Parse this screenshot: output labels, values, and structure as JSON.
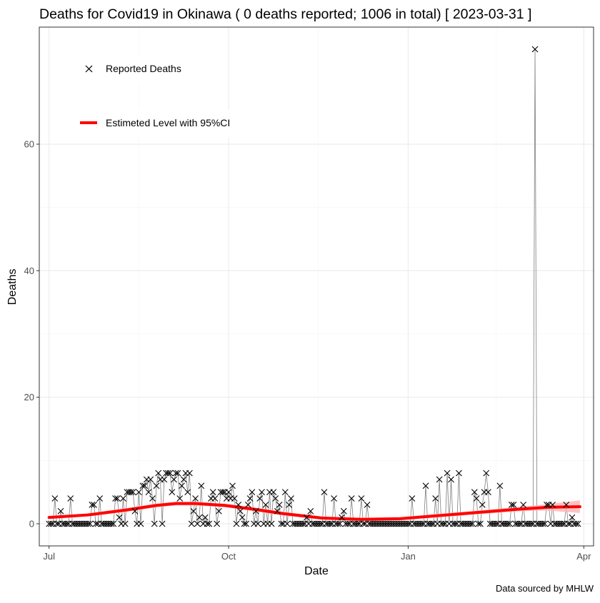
{
  "chart_data": {
    "type": "line",
    "title": "Deaths for Covid19 in Okinawa ( 0 deaths reported; 1006 in total)  [ 2023-03-31 ]",
    "xlabel": "Date",
    "ylabel": "Deaths",
    "caption": "Data sourced by MHLW",
    "x_range_days": [
      -5,
      279
    ],
    "ylim": [
      -3.5,
      78.5
    ],
    "y_ticks": [
      0,
      20,
      40,
      60
    ],
    "x_ticks": [
      {
        "label": "Jul",
        "day": 0
      },
      {
        "label": "Oct",
        "day": 92
      },
      {
        "label": "Jan",
        "day": 184
      },
      {
        "label": "Apr",
        "day": 274
      }
    ],
    "legend": {
      "position": "top-left",
      "entries": [
        {
          "label": "Reported Deaths",
          "kind": "x-marker",
          "color": "#000000"
        },
        {
          "label": "Estimeted Level with 95%CI",
          "kind": "line",
          "color": "#ff0000"
        }
      ]
    },
    "colors": {
      "points": "#000000",
      "connector": "#7f7f7f",
      "trend": "#ff0000",
      "ci": "#ffb3b3"
    },
    "series": [
      {
        "name": "Reported Deaths",
        "start_date": "2022-07-01",
        "values": [
          0,
          0,
          0,
          4,
          0,
          0,
          2,
          0,
          0,
          0,
          0,
          4,
          0,
          0,
          0,
          0,
          0,
          0,
          0,
          0,
          0,
          0,
          3,
          3,
          0,
          0,
          4,
          0,
          0,
          0,
          0,
          0,
          0,
          0,
          4,
          4,
          1,
          0,
          4,
          0,
          5,
          5,
          5,
          5,
          2,
          0,
          5,
          0,
          6,
          6,
          7,
          5,
          7,
          4,
          0,
          6,
          8,
          7,
          0,
          7,
          8,
          8,
          8,
          5,
          7,
          8,
          8,
          4,
          6,
          7,
          8,
          5,
          8,
          0,
          2,
          4,
          0,
          1,
          6,
          0,
          1,
          0,
          0,
          4,
          5,
          4,
          0,
          2,
          5,
          5,
          5,
          4,
          5,
          4,
          6,
          4,
          0,
          3,
          2,
          1,
          0,
          0,
          3,
          4,
          5,
          0,
          2,
          0,
          4,
          5,
          0,
          3,
          0,
          5,
          0,
          5,
          4,
          2,
          3,
          0,
          0,
          5,
          0,
          3,
          4,
          0,
          0,
          0,
          0,
          0,
          0,
          0,
          1,
          0,
          2,
          0,
          0,
          0,
          0,
          0,
          0,
          5,
          0,
          0,
          0,
          0,
          4,
          0,
          0,
          0,
          1,
          2,
          0,
          0,
          0,
          4,
          0,
          0,
          0,
          0,
          4,
          0,
          0,
          3,
          0,
          0,
          0,
          0,
          0,
          0,
          0,
          0,
          0,
          0,
          0,
          0,
          0,
          0,
          0,
          0,
          0,
          0,
          0,
          0,
          0,
          0,
          4,
          0,
          0,
          0,
          0,
          0,
          0,
          6,
          0,
          0,
          0,
          0,
          4,
          0,
          7,
          0,
          0,
          0,
          8,
          0,
          7,
          0,
          0,
          0,
          8,
          0,
          0,
          0,
          0,
          0,
          0,
          0,
          5,
          4,
          0,
          0,
          3,
          5,
          8,
          5,
          0,
          0,
          0,
          0,
          0,
          6,
          0,
          0,
          0,
          0,
          0,
          3,
          3,
          0,
          0,
          0,
          0,
          3,
          0,
          0,
          0,
          0,
          0,
          75,
          0,
          0,
          0,
          0,
          0,
          3,
          3,
          0,
          3,
          0,
          0,
          0,
          0,
          0,
          0,
          3,
          0,
          0,
          1,
          0,
          0,
          0
        ]
      },
      {
        "name": "Estimeted Level with 95%CI",
        "knots": [
          {
            "day": 0,
            "value": 1.0,
            "ci": 0.25
          },
          {
            "day": 20,
            "value": 1.4,
            "ci": 0.25
          },
          {
            "day": 40,
            "value": 2.2,
            "ci": 0.3
          },
          {
            "day": 55,
            "value": 2.9,
            "ci": 0.3
          },
          {
            "day": 65,
            "value": 3.2,
            "ci": 0.3
          },
          {
            "day": 75,
            "value": 3.2,
            "ci": 0.3
          },
          {
            "day": 90,
            "value": 2.9,
            "ci": 0.3
          },
          {
            "day": 105,
            "value": 2.3,
            "ci": 0.3
          },
          {
            "day": 120,
            "value": 1.6,
            "ci": 0.3
          },
          {
            "day": 140,
            "value": 0.9,
            "ci": 0.25
          },
          {
            "day": 160,
            "value": 0.7,
            "ci": 0.25
          },
          {
            "day": 180,
            "value": 0.8,
            "ci": 0.25
          },
          {
            "day": 200,
            "value": 1.3,
            "ci": 0.3
          },
          {
            "day": 220,
            "value": 1.8,
            "ci": 0.3
          },
          {
            "day": 240,
            "value": 2.3,
            "ci": 0.35
          },
          {
            "day": 255,
            "value": 2.6,
            "ci": 0.5
          },
          {
            "day": 272,
            "value": 2.7,
            "ci": 1.0
          }
        ]
      }
    ]
  }
}
